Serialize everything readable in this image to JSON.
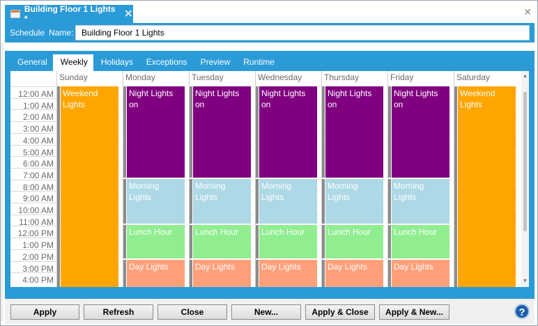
{
  "document_tab": {
    "title": "Building Floor 1 Lights *"
  },
  "schedule": {
    "label1": "Schedule",
    "label2": "Name:",
    "name_value": "Building Floor 1 Lights"
  },
  "tabs": [
    "General",
    "Weekly",
    "Holidays",
    "Exceptions",
    "Preview",
    "Runtime"
  ],
  "active_tab": "Weekly",
  "days": [
    "Sunday",
    "Monday",
    "Tuesday",
    "Wednesday",
    "Thursday",
    "Friday",
    "Saturday"
  ],
  "times": [
    "12:00 AM",
    "1:00 AM",
    "2:00 AM",
    "3:00 AM",
    "4:00 AM",
    "5:00 AM",
    "6:00 AM",
    "7:00 AM",
    "8:00 AM",
    "9:00 AM",
    "10:00 AM",
    "11:00 AM",
    "12:00 PM",
    "1:00 PM",
    "2:00 PM",
    "3:00 PM",
    "4:00 PM"
  ],
  "event_labels": {
    "weekend_line1": "Weekend",
    "weekend_line2": "Lights",
    "night_line1": "Night Lights",
    "night_line2": "on",
    "morning_line1": "Morning",
    "morning_line2": "Lights",
    "lunch": "Lunch Hour",
    "day": "Day Lights"
  },
  "colors": {
    "accent": "#2b9bd8",
    "weekend": "#ffa500",
    "night": "#800080",
    "morning": "#add8e6",
    "lunch": "#90ee90",
    "day": "#ffa07a"
  },
  "buttons": {
    "apply": "Apply",
    "refresh": "Refresh",
    "close": "Close",
    "new": "New...",
    "apply_close": "Apply & Close",
    "apply_new": "Apply & New..."
  },
  "help": {
    "glyph": "?"
  }
}
